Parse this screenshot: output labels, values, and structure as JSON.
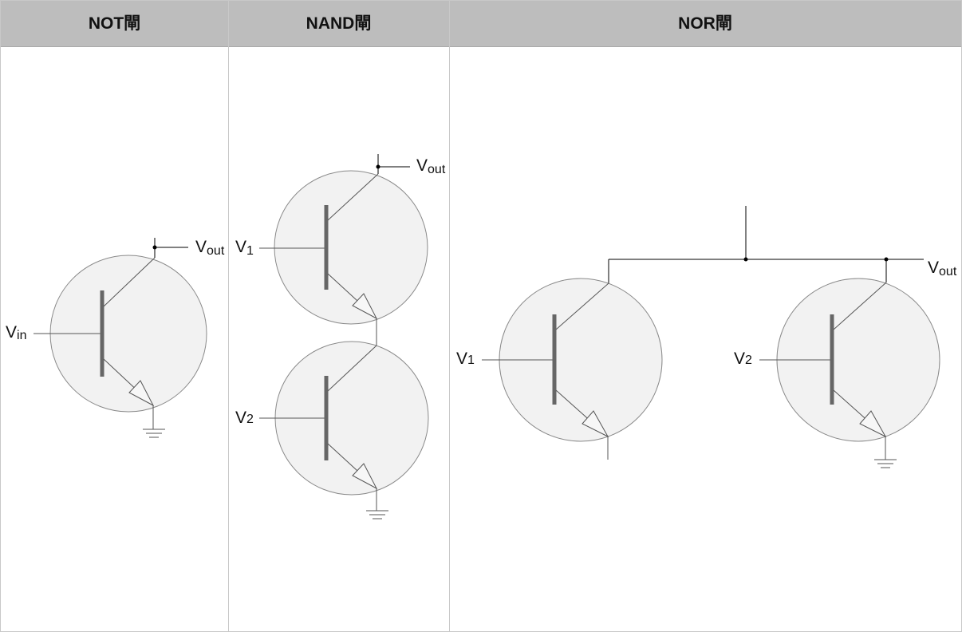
{
  "columns": {
    "not": {
      "title": "NOT閘"
    },
    "nand": {
      "title": "NAND閘"
    },
    "nor": {
      "title": "NOR閘"
    }
  },
  "labels": {
    "v": "V",
    "out_sub": "out",
    "in_sub": "in",
    "one": "1",
    "two": "2"
  },
  "colors": {
    "header_bg": "#bdbdbd",
    "transistor_fill": "#f2f2f2",
    "base_bar": "#666666",
    "wire": "#000000"
  }
}
